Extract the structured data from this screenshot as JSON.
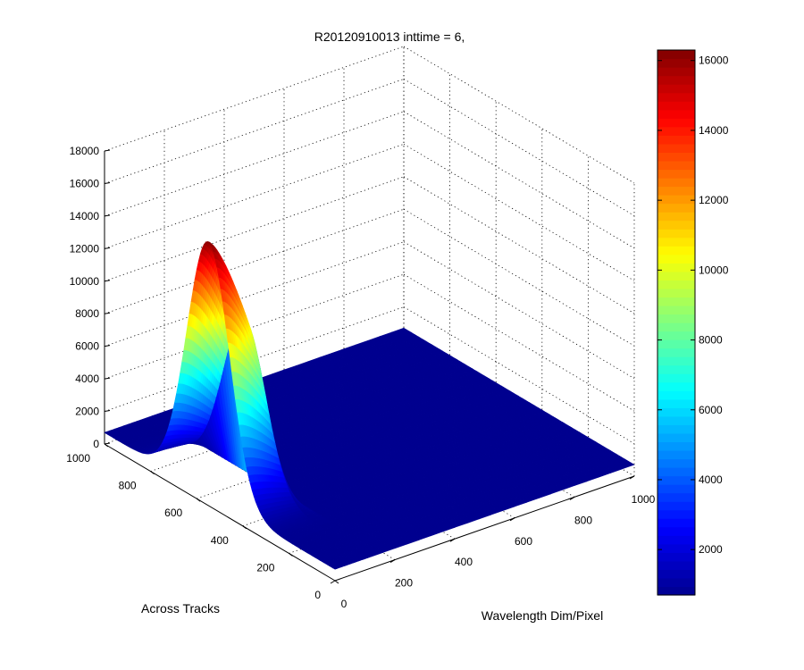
{
  "chart_data": {
    "type": "surface3d",
    "title": "R20120910013 inttime = 6,",
    "xlabel": "Wavelength Dim/Pixel",
    "ylabel": "Across Tracks",
    "zlabel": "",
    "xlim": [
      0,
      1000
    ],
    "ylim": [
      0,
      1000
    ],
    "zlim": [
      0,
      18000
    ],
    "xticks": [
      "0",
      "200",
      "400",
      "600",
      "800",
      "1000"
    ],
    "yticks": [
      "0",
      "200",
      "400",
      "600",
      "800",
      "1000"
    ],
    "zticks": [
      "0",
      "2000",
      "4000",
      "6000",
      "8000",
      "10000",
      "12000",
      "14000",
      "16000",
      "18000"
    ],
    "grid": true,
    "colormap": "jet",
    "surface": {
      "baseline": 700,
      "peak_value": 16200,
      "peak_across_tracks": 550,
      "peak_across_tracks_halfwidth": 130,
      "wavelength_signal_range": [
        0,
        120
      ],
      "wavelength_signal_peak": 0
    },
    "colorbar": {
      "range": [
        700,
        16300
      ],
      "ticks": [
        "2000",
        "4000",
        "6000",
        "8000",
        "10000",
        "12000",
        "14000",
        "16000"
      ],
      "colors": [
        "#00008f",
        "#0000ff",
        "#0080ff",
        "#00ffff",
        "#80ff80",
        "#ffff00",
        "#ff8000",
        "#ff0000",
        "#800000"
      ]
    }
  }
}
